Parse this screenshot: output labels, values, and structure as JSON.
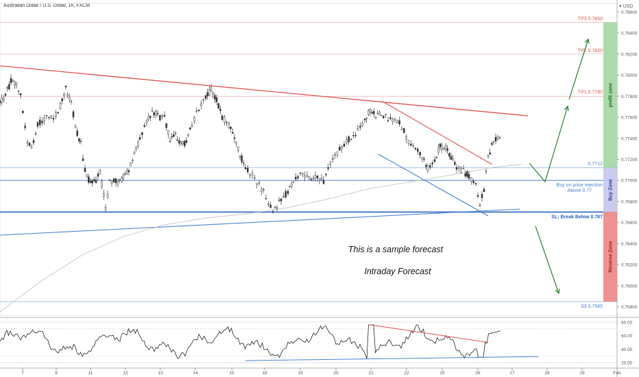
{
  "header": {
    "title": "Australian Dollar / U.S. Dollar, 1h, FXCM",
    "currency": "USD"
  },
  "colors": {
    "candle": "#333333",
    "red_line": "#e05050",
    "blue_line": "#4a7fd0",
    "arrow": "#2e8b3a",
    "profit_zone": "#a8d8a8",
    "buy_zone": "#c8c8ec",
    "reverse_zone": "#f08a8a"
  },
  "chart_data": [
    {
      "type": "candlestick",
      "symbol": "AUDUSD",
      "timeframe": "1h",
      "x_ticks": [
        "7",
        "8",
        "11",
        "12",
        "13",
        "14",
        "15",
        "18",
        "19",
        "20",
        "21",
        "22",
        "25",
        "26",
        "27",
        "28",
        "29",
        "Feb"
      ],
      "y_ticks": [
        "0.78600",
        "0.78400",
        "0.78200",
        "0.78000",
        "0.77800",
        "0.77600",
        "0.77400",
        "0.77200",
        "0.77000",
        "0.76800",
        "0.76600",
        "0.76400",
        "0.76200",
        "0.76000",
        "0.75800"
      ],
      "ylim": [
        0.7572,
        0.7868
      ],
      "levels": [
        {
          "label": "TP3 0.7850",
          "value": 0.785,
          "color": "#e05050"
        },
        {
          "label": "TP2 0.7820",
          "value": 0.782,
          "color": "#e05050"
        },
        {
          "label": "TP1 0.7780",
          "value": 0.778,
          "color": "#e05050"
        },
        {
          "label": "0.7712",
          "value": 0.7712,
          "color": "#4a7fd0"
        },
        {
          "label": "Buy on price rejection",
          "label2": "Above 0.77",
          "value": 0.77,
          "color": "#4a7fd0"
        },
        {
          "label": "SL: Break Below 0.767",
          "value": 0.767,
          "color": "#1f5fb8"
        },
        {
          "label": "S3 0.7585",
          "value": 0.7585,
          "color": "#4a7fd0"
        }
      ],
      "zones": [
        {
          "label": "profit zone",
          "from": 0.7712,
          "to": 0.785,
          "color": "#a8d8a8"
        },
        {
          "label": "Buy Zone",
          "from": 0.767,
          "to": 0.7712,
          "color": "#c8c8ec"
        },
        {
          "label": "Reverse Zone",
          "from": 0.7585,
          "to": 0.767,
          "color": "#f08a8a"
        }
      ],
      "annotations": [
        "This is a sample forecast",
        "Intraday Forecast"
      ]
    },
    {
      "type": "line",
      "indicator": "RSI",
      "y_ticks": [
        "80.00",
        "60.00",
        "40.00",
        "20.00"
      ],
      "ylim": [
        14,
        86
      ]
    }
  ]
}
